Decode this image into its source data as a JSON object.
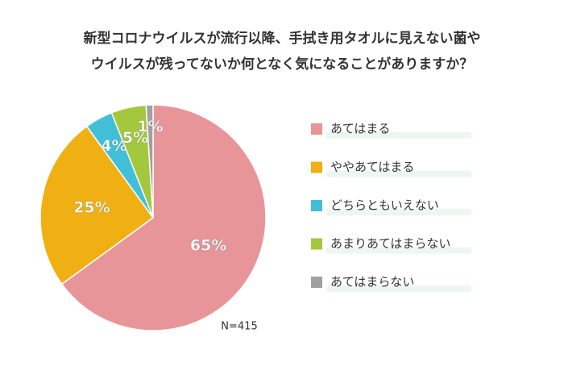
{
  "chart_data": {
    "type": "pie",
    "title": [
      "新型コロナウイルスが流行以降、手拭き用タオルに見えない菌や",
      "ウイルスが残ってないか何となく気になることがありますか？"
    ],
    "categories": [
      "あてはまる",
      "ややあてはまる",
      "どちらともいえない",
      "あまりあてはまらない",
      "あてはまらない"
    ],
    "values": [
      65,
      25,
      4,
      5,
      1
    ],
    "value_labels": [
      "65%",
      "25%",
      "4%",
      "5%",
      "1%"
    ],
    "colors": [
      "#e8959a",
      "#f0b013",
      "#41bfd9",
      "#a3c83d",
      "#a0a0a0"
    ],
    "annotation": "N=415"
  }
}
